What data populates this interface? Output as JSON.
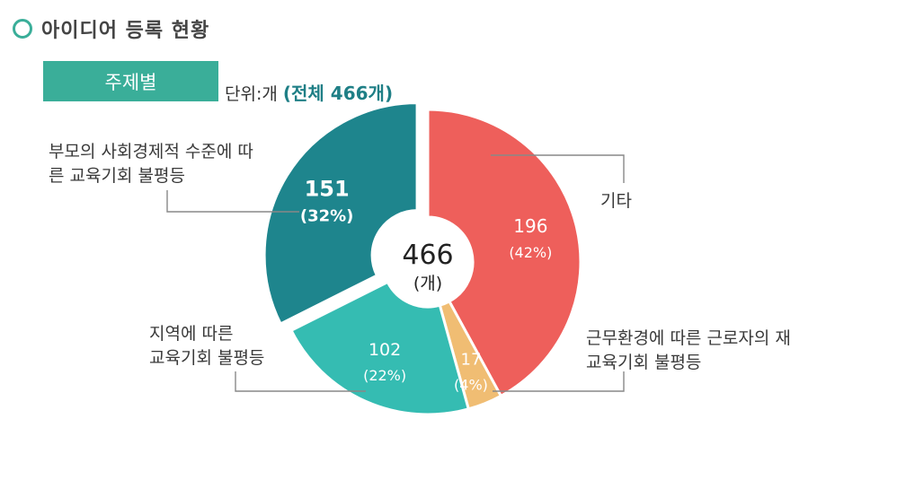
{
  "header": {
    "title": "아이디어 등록 현황",
    "icon": "hexagon-outline-icon",
    "accent": "#3aae99"
  },
  "tag": {
    "label": "주제별"
  },
  "unit": {
    "prefix": "단위:개",
    "total_text": "(전체 466개)"
  },
  "center": {
    "value": "466",
    "unit": "(개)"
  },
  "labels": {
    "socio": [
      "부모의 사회경제적 수준에 따",
      "른 교육기회 불평등"
    ],
    "region": [
      "지역에 따른",
      "교육기회 불평등"
    ],
    "other": [
      "기타"
    ],
    "work": [
      "근무환경에 따른 근로자의 재",
      "교육기회 불평등"
    ]
  },
  "chart_data": {
    "type": "pie",
    "title": "",
    "total": 466,
    "slices": [
      {
        "name": "기타",
        "value": 196,
        "percent": "(42%)",
        "color": "#ee5f5b"
      },
      {
        "name": "근무환경에 따른 근로자의 재교육기회 불평등",
        "value": 17,
        "percent": "(4%)",
        "color": "#f0bd73"
      },
      {
        "name": "지역에 따른 교육기회 불평등",
        "value": 102,
        "percent": "(22%)",
        "color": "#35bcb2"
      },
      {
        "name": "부모의 사회경제적 수준에 따른 교육기회 불평등",
        "value": 151,
        "percent": "(32%)",
        "color": "#1e858d",
        "exploded": true
      }
    ]
  }
}
